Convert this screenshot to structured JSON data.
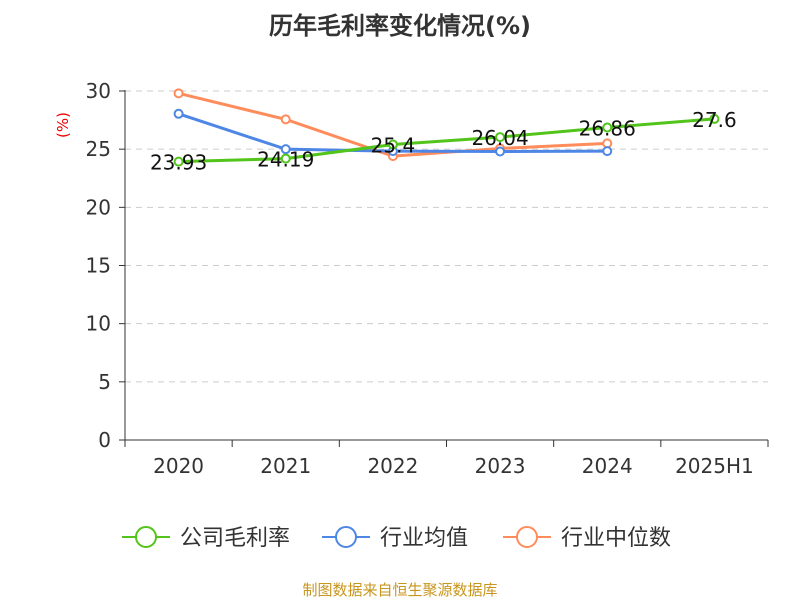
{
  "chart_data": {
    "type": "line",
    "title": "历年毛利率变化情况(%)",
    "ylabel": "(%)",
    "categories": [
      "2020",
      "2021",
      "2022",
      "2023",
      "2024",
      "2025H1"
    ],
    "ylim": [
      0,
      30
    ],
    "yticks": [
      0,
      5,
      10,
      15,
      20,
      25,
      30
    ],
    "grid": true,
    "legend_position": "bottom",
    "series": [
      {
        "name": "公司毛利率",
        "color": "#52c41a",
        "values": [
          23.93,
          24.19,
          25.4,
          26.04,
          26.86,
          27.6
        ],
        "labels": [
          "23.93",
          "24.19",
          "25.4",
          "26.04",
          "26.86",
          "27.6"
        ]
      },
      {
        "name": "行业均值",
        "color": "#4e86e6",
        "values": [
          28.04,
          25.0,
          24.83,
          24.8,
          24.83,
          null
        ]
      },
      {
        "name": "行业中位数",
        "color": "#ff8c5a",
        "values": [
          29.8,
          27.56,
          24.4,
          25.06,
          25.5,
          null
        ]
      }
    ]
  },
  "footer": "制图数据来自恒生聚源数据库"
}
